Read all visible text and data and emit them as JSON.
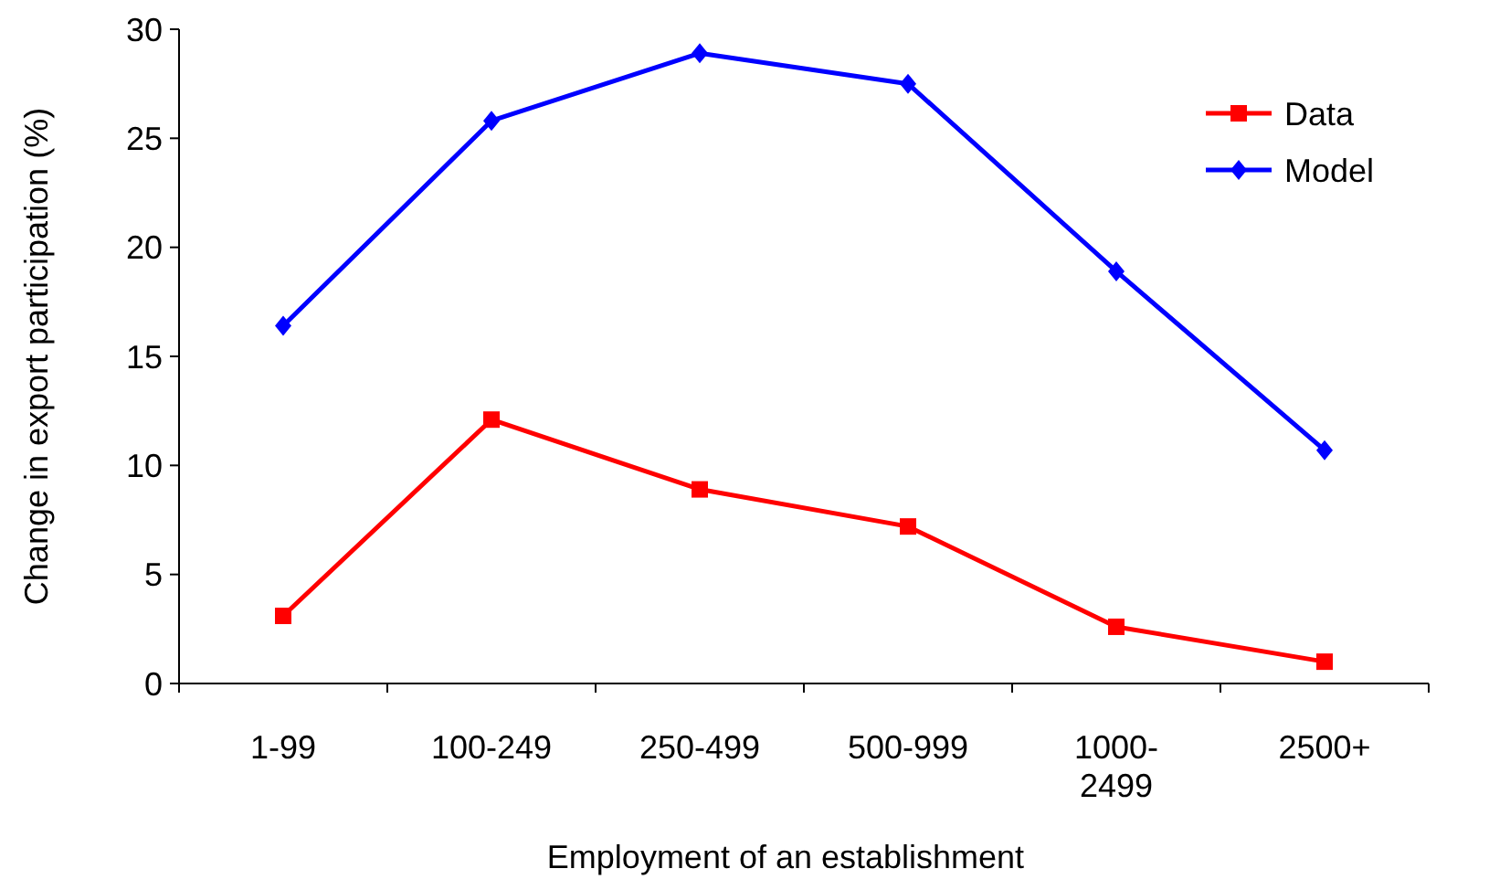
{
  "chart_data": {
    "type": "line",
    "xlabel": "Employment of an establishment",
    "ylabel": "Change in export participation (%)",
    "categories": [
      "1-99",
      "100-249",
      "250-499",
      "500-999",
      "1000-2499",
      "2500+"
    ],
    "series": [
      {
        "name": "Data",
        "color": "#ff0000",
        "marker": "square",
        "values": [
          3.1,
          12.1,
          8.9,
          7.2,
          2.6,
          1.0
        ]
      },
      {
        "name": "Model",
        "color": "#0000ff",
        "marker": "diamond",
        "values": [
          16.4,
          25.8,
          28.9,
          27.5,
          18.9,
          10.7
        ]
      }
    ],
    "ylim": [
      0,
      30
    ],
    "yticks": [
      0,
      5,
      10,
      15,
      20,
      25,
      30
    ],
    "grid": false,
    "legend": "top right",
    "line_style": "solid"
  }
}
